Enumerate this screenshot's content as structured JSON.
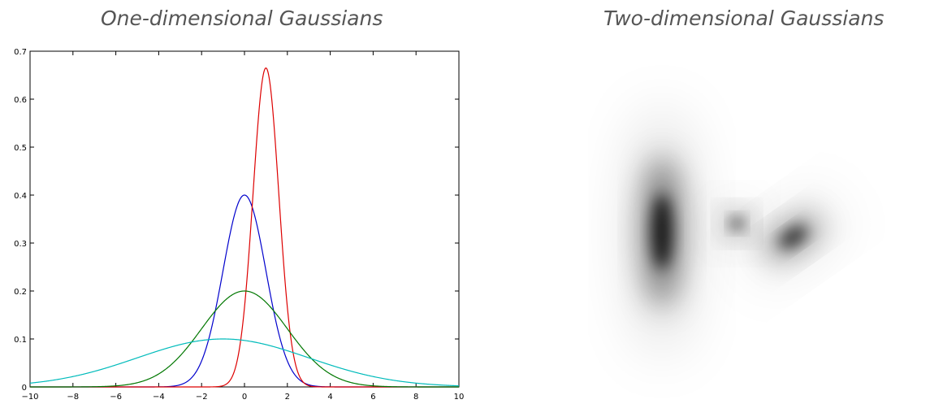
{
  "panels": {
    "left_title": "One-dimensional Gaussians",
    "right_title": "Two-dimensional Gaussians"
  },
  "chart_data": [
    {
      "type": "line",
      "title": "One-dimensional Gaussians",
      "xlabel": "",
      "ylabel": "",
      "xlim": [
        -10,
        10
      ],
      "ylim": [
        0,
        0.7
      ],
      "x_ticks": [
        -10,
        -8,
        -6,
        -4,
        -2,
        0,
        2,
        4,
        6,
        8,
        10
      ],
      "x_tick_labels": [
        "−10",
        "−8",
        "−6",
        "−4",
        "−2",
        "0",
        "2",
        "4",
        "6",
        "8",
        "10"
      ],
      "y_ticks": [
        0,
        0.1,
        0.2,
        0.3,
        0.4,
        0.5,
        0.6,
        0.7
      ],
      "y_tick_labels": [
        "0",
        "0.1",
        "0.2",
        "0.3",
        "0.4",
        "0.5",
        "0.6",
        "0.7"
      ],
      "grid": false,
      "series": [
        {
          "mean": 0,
          "sd": 1,
          "peak": 0.4,
          "color": "#0000cc"
        },
        {
          "mean": 1,
          "sd": 0.6,
          "peak": 0.665,
          "color": "#dd0000"
        },
        {
          "mean": 0,
          "sd": 2,
          "peak": 0.2,
          "color": "#007700"
        },
        {
          "mean": -1,
          "sd": 4,
          "peak": 0.1,
          "color": "#00bbbb"
        }
      ]
    },
    {
      "type": "heatmap",
      "title": "Two-dimensional Gaussians",
      "components": [
        {
          "name": "vertical",
          "mean": [
            0,
            0
          ],
          "sd_major": 1,
          "sd_minor": 0.27,
          "angle_deg": 0,
          "weight": 1.0
        },
        {
          "name": "round",
          "mean": [
            1.4,
            0.15
          ],
          "sd_major": 0.16,
          "sd_minor": 0.16,
          "angle_deg": 0,
          "weight": 0.95
        },
        {
          "name": "diagonal",
          "mean": [
            2.45,
            -0.1
          ],
          "sd_major": 0.42,
          "sd_minor": 0.2,
          "angle_deg": -35,
          "weight": 0.9
        }
      ]
    }
  ]
}
